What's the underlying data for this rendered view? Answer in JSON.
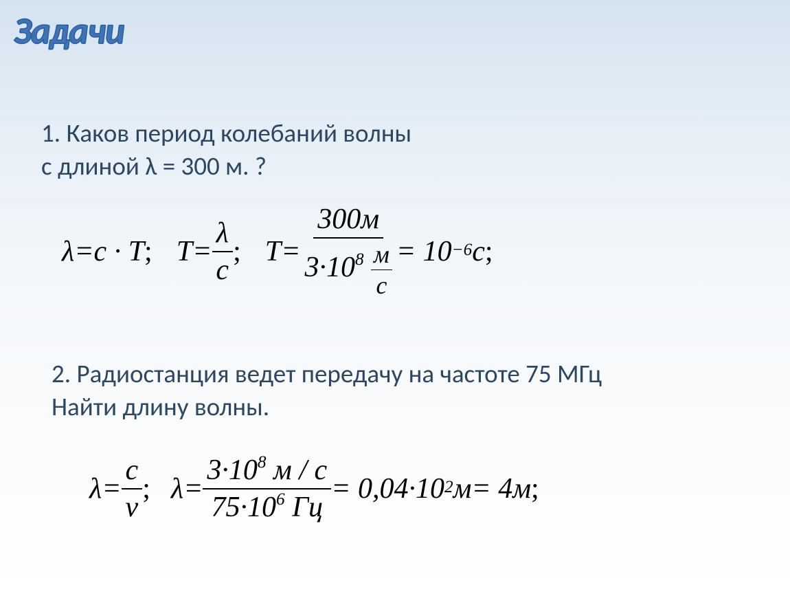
{
  "title": "Задачи",
  "problem1": {
    "line1": "1. Каков период колебаний волны",
    "line2": "с длиной λ = 300 м. ?"
  },
  "formula1": {
    "part1_lhs": "λ",
    "part1_op": " = ",
    "part1_rhs": "c · T",
    "part1_semi": ";",
    "part2_lhs": "T",
    "part2_eq": " = ",
    "part2_num": "λ",
    "part2_den": "c",
    "part2_semi": ";",
    "part3_lhs": "T",
    "part3_eq": " = ",
    "part3_num": "300м",
    "part3_den_coeff": "3·10",
    "part3_den_exp": "8",
    "part3_den_unit_num": "м",
    "part3_den_unit_den": "с",
    "part3_eq2": " = 10",
    "part3_exp": "−6",
    "part3_unit": "с",
    "part3_semi": ";"
  },
  "problem2": {
    "line1": "2. Радиостанция ведет передачу на частоте 75 МГц",
    "line2": "Найти длину волны."
  },
  "formula2": {
    "part1_lhs": "λ",
    "part1_eq": " = ",
    "part1_num": "c",
    "part1_den": "ν",
    "part1_semi": ";",
    "part2_lhs": "λ",
    "part2_eq": " = ",
    "part2_num_coeff": "3·10",
    "part2_num_exp": "8",
    "part2_num_unit": " м / с",
    "part2_den_coeff": "75·10",
    "part2_den_exp": "6",
    "part2_den_unit": " Гц",
    "part2_eq2": " = 0,04·10",
    "part2_exp2": "2",
    "part2_unit2": " м",
    "part2_eq3": " = 4м",
    "part2_semi": ";"
  },
  "styles": {
    "bg_gradient_top": "#d5e3f0",
    "bg_gradient_bottom": "#ffffff",
    "title_color": "#3d74b8",
    "text_color": "#2b4763",
    "formula_color": "#000000",
    "title_fontsize": 54,
    "problem_fontsize": 37,
    "formula_fontsize": 42
  }
}
